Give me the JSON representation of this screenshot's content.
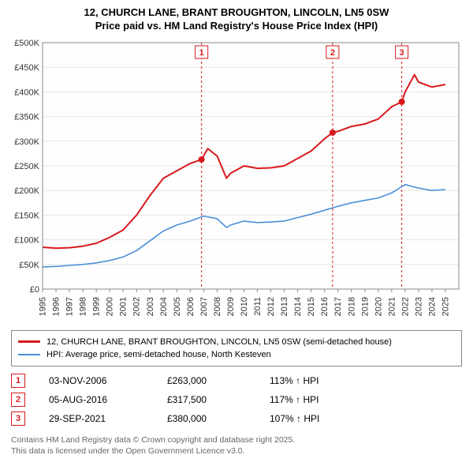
{
  "title_line1": "12, CHURCH LANE, BRANT BROUGHTON, LINCOLN, LN5 0SW",
  "title_line2": "Price paid vs. HM Land Registry's House Price Index (HPI)",
  "chart": {
    "type": "line",
    "background_color": "#ffffff",
    "plot_bg_color": "#fefefe",
    "grid_color": "#e6e6e6",
    "axis_color": "#888888",
    "x_range": [
      1995,
      2026
    ],
    "y_range": [
      0,
      500000
    ],
    "y_ticks": [
      0,
      50000,
      100000,
      150000,
      200000,
      250000,
      300000,
      350000,
      400000,
      450000,
      500000
    ],
    "y_tick_labels": [
      "£0",
      "£50K",
      "£100K",
      "£150K",
      "£200K",
      "£250K",
      "£300K",
      "£350K",
      "£400K",
      "£450K",
      "£500K"
    ],
    "x_ticks": [
      1995,
      1996,
      1997,
      1998,
      1999,
      2000,
      2001,
      2002,
      2003,
      2004,
      2005,
      2006,
      2007,
      2008,
      2009,
      2010,
      2011,
      2012,
      2013,
      2014,
      2015,
      2016,
      2017,
      2018,
      2019,
      2020,
      2021,
      2022,
      2023,
      2024,
      2025
    ],
    "series": [
      {
        "name": "property",
        "label": "12, CHURCH LANE, BRANT BROUGHTON, LINCOLN, LN5 0SW (semi-detached house)",
        "color": "#d7191c",
        "line_width": 2,
        "data": [
          [
            1995,
            85000
          ],
          [
            1996,
            83000
          ],
          [
            1997,
            84000
          ],
          [
            1998,
            87000
          ],
          [
            1999,
            93000
          ],
          [
            2000,
            105000
          ],
          [
            2001,
            120000
          ],
          [
            2002,
            150000
          ],
          [
            2003,
            190000
          ],
          [
            2004,
            225000
          ],
          [
            2005,
            240000
          ],
          [
            2006,
            255000
          ],
          [
            2006.84,
            263000
          ],
          [
            2007.3,
            285000
          ],
          [
            2008,
            270000
          ],
          [
            2008.7,
            225000
          ],
          [
            2009,
            235000
          ],
          [
            2010,
            250000
          ],
          [
            2011,
            245000
          ],
          [
            2012,
            246000
          ],
          [
            2013,
            250000
          ],
          [
            2014,
            265000
          ],
          [
            2015,
            280000
          ],
          [
            2016,
            305000
          ],
          [
            2016.6,
            317500
          ],
          [
            2017,
            320000
          ],
          [
            2018,
            330000
          ],
          [
            2019,
            335000
          ],
          [
            2020,
            345000
          ],
          [
            2021,
            370000
          ],
          [
            2021.75,
            380000
          ],
          [
            2022,
            400000
          ],
          [
            2022.7,
            435000
          ],
          [
            2023,
            420000
          ],
          [
            2024,
            410000
          ],
          [
            2025,
            415000
          ]
        ]
      },
      {
        "name": "hpi",
        "label": "HPI: Average price, semi-detached house, North Kesteven",
        "color": "#4a90d9",
        "line_width": 1.6,
        "data": [
          [
            1995,
            45000
          ],
          [
            1996,
            46000
          ],
          [
            1997,
            48000
          ],
          [
            1998,
            50000
          ],
          [
            1999,
            53000
          ],
          [
            2000,
            58000
          ],
          [
            2001,
            65000
          ],
          [
            2002,
            78000
          ],
          [
            2003,
            98000
          ],
          [
            2004,
            118000
          ],
          [
            2005,
            130000
          ],
          [
            2006,
            138000
          ],
          [
            2007,
            148000
          ],
          [
            2008,
            143000
          ],
          [
            2008.7,
            125000
          ],
          [
            2009,
            130000
          ],
          [
            2010,
            138000
          ],
          [
            2011,
            135000
          ],
          [
            2012,
            136000
          ],
          [
            2013,
            138000
          ],
          [
            2014,
            145000
          ],
          [
            2015,
            152000
          ],
          [
            2016,
            160000
          ],
          [
            2017,
            168000
          ],
          [
            2018,
            175000
          ],
          [
            2019,
            180000
          ],
          [
            2020,
            185000
          ],
          [
            2021,
            195000
          ],
          [
            2022,
            212000
          ],
          [
            2023,
            205000
          ],
          [
            2024,
            200000
          ],
          [
            2025,
            202000
          ]
        ]
      }
    ],
    "event_markers": [
      {
        "id": "1",
        "x": 2006.84,
        "y": 263000,
        "dot_color": "#d7191c",
        "line_color": "#d7191c"
      },
      {
        "id": "2",
        "x": 2016.6,
        "y": 317500,
        "dot_color": "#d7191c",
        "line_color": "#d7191c"
      },
      {
        "id": "3",
        "x": 2021.75,
        "y": 380000,
        "dot_color": "#d7191c",
        "line_color": "#d7191c"
      }
    ]
  },
  "legend": {
    "items": [
      {
        "color": "#d7191c",
        "label": "12, CHURCH LANE, BRANT BROUGHTON, LINCOLN, LN5 0SW (semi-detached house)"
      },
      {
        "color": "#4a90d9",
        "label": "HPI: Average price, semi-detached house, North Kesteven"
      }
    ]
  },
  "markers_table": [
    {
      "badge": "1",
      "badge_color": "#d7191c",
      "date": "03-NOV-2006",
      "price": "£263,000",
      "pct": "113% ↑ HPI"
    },
    {
      "badge": "2",
      "badge_color": "#d7191c",
      "date": "05-AUG-2016",
      "price": "£317,500",
      "pct": "117% ↑ HPI"
    },
    {
      "badge": "3",
      "badge_color": "#d7191c",
      "date": "29-SEP-2021",
      "price": "£380,000",
      "pct": "107% ↑ HPI"
    }
  ],
  "footnote_line1": "Contains HM Land Registry data © Crown copyright and database right 2025.",
  "footnote_line2": "This data is licensed under the Open Government Licence v3.0."
}
